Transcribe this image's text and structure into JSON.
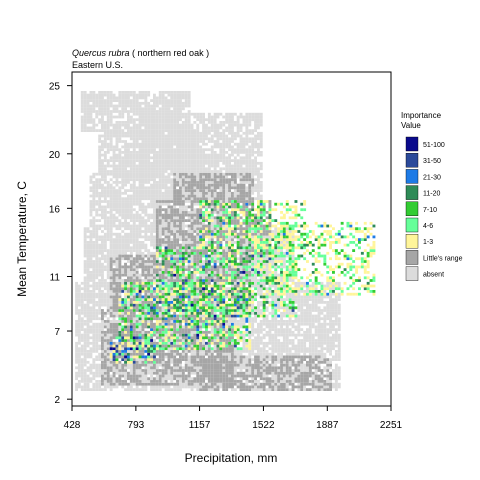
{
  "chart_data": {
    "type": "heatmap",
    "title_species": "Quercus rubra",
    "title_common": " ( northern red oak )",
    "subtitle": "Eastern U.S.",
    "xlabel": "Precipitation, mm",
    "ylabel": "Mean Temperature, C",
    "xlim": [
      428,
      2251
    ],
    "ylim": [
      1.5,
      26.0
    ],
    "x_ticks": [
      428,
      793,
      1157,
      1522,
      1887,
      2251
    ],
    "y_ticks": [
      2,
      7,
      11,
      16,
      20,
      25
    ],
    "grid": false,
    "legend_placement": "right",
    "legend": {
      "title": "Importance\nValue",
      "items": [
        {
          "label": "51-100",
          "color": "#0a0a8c"
        },
        {
          "label": "31-50",
          "color": "#2b4a9a"
        },
        {
          "label": "21-30",
          "color": "#1e7be6"
        },
        {
          "label": "11-20",
          "color": "#2e8b57"
        },
        {
          "label": "7-10",
          "color": "#33cc33"
        },
        {
          "label": "4-6",
          "color": "#66ff99"
        },
        {
          "label": "1-3",
          "color": "#fff59a"
        },
        {
          "label": "Little's range",
          "color": "#a6a6a6"
        },
        {
          "label": "absent",
          "color": "#dcdcdc"
        }
      ]
    },
    "series": [
      {
        "name": "absent",
        "color": "#dcdcdc",
        "regions": [
          {
            "x": [
              448,
              1960
            ],
            "y": [
              2.5,
              10.5
            ]
          },
          {
            "x": [
              500,
              1700
            ],
            "y": [
              10.5,
              14.5
            ]
          },
          {
            "x": [
              520,
              1300
            ],
            "y": [
              14.5,
              18.5
            ]
          },
          {
            "x": [
              580,
              1150
            ],
            "y": [
              18.5,
              21.5
            ]
          },
          {
            "x": [
              480,
              1100
            ],
            "y": [
              21.5,
              24.5
            ]
          },
          {
            "x": [
              820,
              1500
            ],
            "y": [
              16.5,
              23.0
            ]
          }
        ]
      },
      {
        "name": "Little's range",
        "color": "#a6a6a6",
        "regions": [
          {
            "x": [
              600,
              1350
            ],
            "y": [
              3.0,
              8.5
            ]
          },
          {
            "x": [
              650,
              1450
            ],
            "y": [
              8.5,
              12.5
            ]
          },
          {
            "x": [
              900,
              1550
            ],
            "y": [
              12.5,
              16.5
            ]
          },
          {
            "x": [
              1000,
              1450
            ],
            "y": [
              16.5,
              18.5
            ]
          },
          {
            "x": [
              1150,
              1900
            ],
            "y": [
              2.5,
              5.0
            ]
          }
        ]
      },
      {
        "name": "importance",
        "regions": [
          {
            "x": [
              900,
              1700
            ],
            "y": [
              8.0,
              13.0
            ],
            "mix": {
              "1-3": 20,
              "4-6": 25,
              "7-10": 28,
              "11-20": 18,
              "21-30": 5,
              "31-50": 3,
              "51-100": 1
            }
          },
          {
            "x": [
              700,
              1450
            ],
            "y": [
              5.5,
              10.5
            ],
            "mix": {
              "1-3": 28,
              "4-6": 25,
              "7-10": 22,
              "11-20": 14,
              "21-30": 6,
              "31-50": 4,
              "51-100": 1
            }
          },
          {
            "x": [
              1150,
              1750
            ],
            "y": [
              13.0,
              16.5
            ],
            "mix": {
              "1-3": 40,
              "4-6": 25,
              "7-10": 22,
              "11-20": 10,
              "21-30": 2,
              "31-50": 1,
              "51-100": 0
            }
          },
          {
            "x": [
              1550,
              2150
            ],
            "y": [
              9.5,
              15.0
            ],
            "mix": {
              "1-3": 50,
              "4-6": 30,
              "7-10": 12,
              "11-20": 6,
              "21-30": 2,
              "31-50": 0,
              "51-100": 0
            }
          },
          {
            "x": [
              650,
              900
            ],
            "y": [
              4.5,
              6.5
            ],
            "mix": {
              "1-3": 30,
              "4-6": 20,
              "7-10": 10,
              "11-20": 10,
              "21-30": 10,
              "31-50": 12,
              "51-100": 8
            }
          }
        ]
      }
    ]
  }
}
